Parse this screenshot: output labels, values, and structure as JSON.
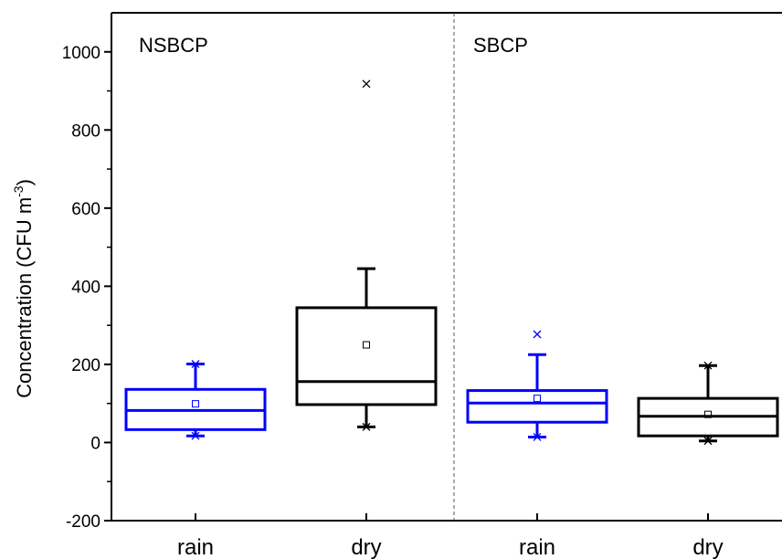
{
  "chart_data": {
    "type": "box",
    "ylabel": "Concentration (CFU m",
    "ylabel_superscript": "-3",
    "ylabel_close": ")",
    "ylim": [
      -200,
      1100
    ],
    "yticks": [
      -200,
      0,
      200,
      400,
      600,
      800,
      1000
    ],
    "ytick_labels": [
      "-200",
      "0",
      "200",
      "400",
      "600",
      "800",
      "1000"
    ],
    "panels": [
      {
        "label": "NSBCP"
      },
      {
        "label": "SBCP"
      }
    ],
    "categories": [
      "rain",
      "dry",
      "rain",
      "dry"
    ],
    "boxes": [
      {
        "panel": 0,
        "category": "rain",
        "color": "#0000ff",
        "q1": 33,
        "median": 82,
        "q3": 136,
        "mean": 99,
        "whisker_low": 17,
        "whisker_high": 201,
        "min": 17,
        "max": 201,
        "outliers": []
      },
      {
        "panel": 0,
        "category": "dry",
        "color": "#000000",
        "q1": 97,
        "median": 156,
        "q3": 345,
        "mean": 250,
        "whisker_low": 40,
        "whisker_high": 445,
        "min": 40,
        "max": 918,
        "outliers": [
          918
        ]
      },
      {
        "panel": 1,
        "category": "rain",
        "color": "#0000ff",
        "q1": 52,
        "median": 101,
        "q3": 133,
        "mean": 113,
        "whisker_low": 14,
        "whisker_high": 225,
        "min": 14,
        "max": 277,
        "outliers": [
          277
        ]
      },
      {
        "panel": 1,
        "category": "dry",
        "color": "#000000",
        "q1": 17,
        "median": 67,
        "q3": 113,
        "mean": 72,
        "whisker_low": 4,
        "whisker_high": 197,
        "min": 4,
        "max": 197,
        "outliers": []
      }
    ],
    "legend": "none",
    "grid": false
  }
}
